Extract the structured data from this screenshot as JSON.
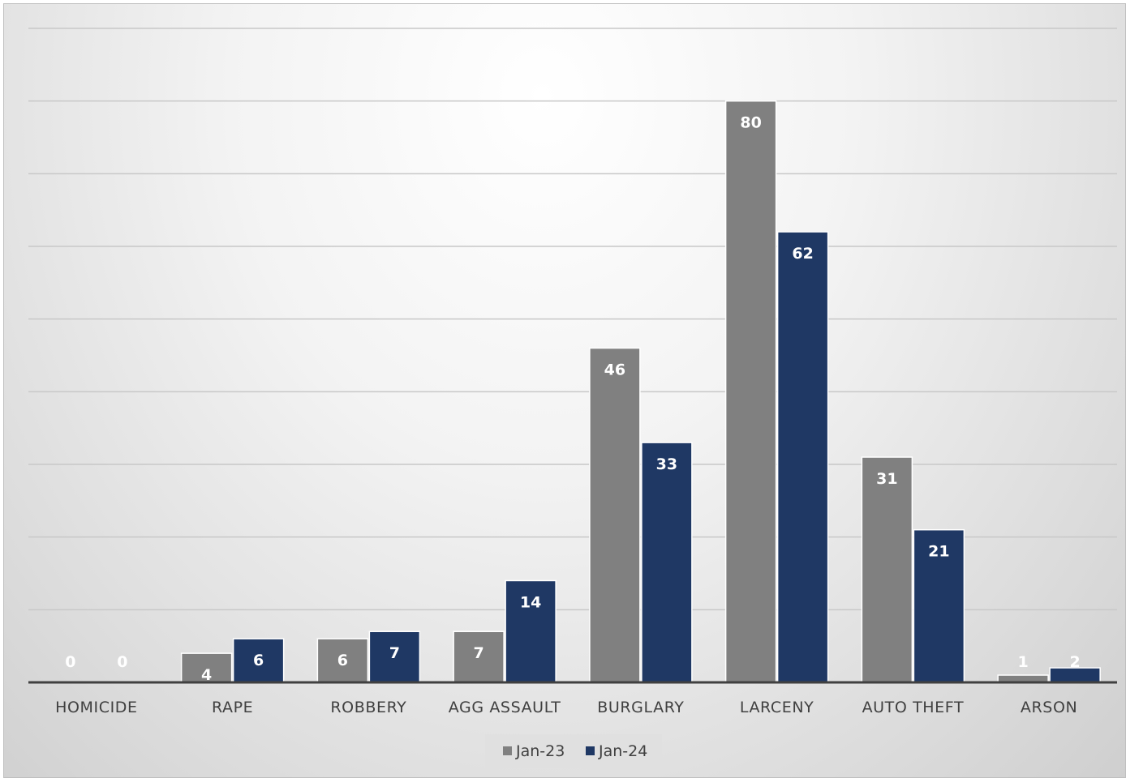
{
  "chart_data": {
    "type": "bar",
    "categories": [
      "HOMICIDE",
      "RAPE",
      "ROBBERY",
      "AGG ASSAULT",
      "BURGLARY",
      "LARCENY",
      "AUTO THEFT",
      "ARSON"
    ],
    "series": [
      {
        "name": "Jan-23",
        "color": "#808080",
        "values": [
          0,
          4,
          6,
          7,
          46,
          80,
          31,
          1
        ]
      },
      {
        "name": "Jan-24",
        "color": "#1f3864",
        "values": [
          0,
          6,
          7,
          14,
          33,
          62,
          21,
          2
        ]
      }
    ],
    "ylim": [
      0,
      90
    ],
    "ytick_step": 10,
    "grid": true,
    "data_labels": true,
    "legend_position": "bottom",
    "title": "",
    "xlabel": "",
    "ylabel": ""
  }
}
